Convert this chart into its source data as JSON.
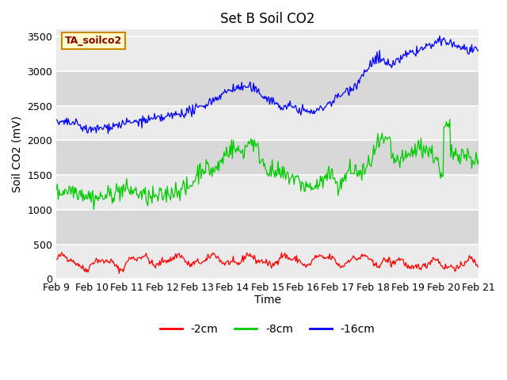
{
  "title": "Set B Soil CO2",
  "ylabel": "Soil CO2 (mV)",
  "xlabel": "Time",
  "annotation_text": "TA_soilco2",
  "annotation_color": "#8B0000",
  "annotation_bg": "#FFFFCC",
  "annotation_border": "#CC8800",
  "legend_labels": [
    "-2cm",
    "-8cm",
    "-16cm"
  ],
  "legend_colors": [
    "#FF0000",
    "#00CC00",
    "#0000FF"
  ],
  "x_tick_labels": [
    "Feb 9",
    "Feb 10",
    "Feb 11",
    "Feb 12",
    "Feb 13",
    "Feb 14",
    "Feb 15",
    "Feb 16",
    "Feb 17",
    "Feb 18",
    "Feb 19",
    "Feb 20",
    "Feb 21"
  ],
  "ylim": [
    0,
    3600
  ],
  "yticks": [
    0,
    500,
    1000,
    1500,
    2000,
    2500,
    3000,
    3500
  ],
  "bg_light": "#EBEBEB",
  "bg_dark": "#D8D8D8",
  "n_points": 500,
  "seed": 42
}
